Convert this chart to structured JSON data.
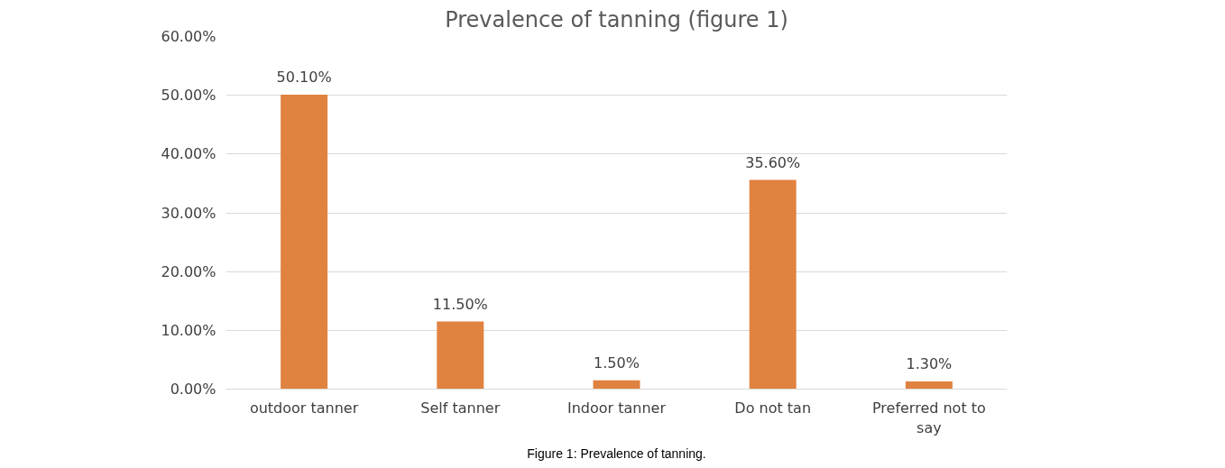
{
  "chart_data": {
    "type": "bar",
    "title": "Prevalence of tanning (figure 1)",
    "categories": [
      "outdoor tanner",
      "Self tanner",
      "Indoor tanner",
      "Do not tan",
      "Preferred not to say"
    ],
    "values": [
      50.1,
      11.5,
      1.5,
      35.6,
      1.3
    ],
    "value_labels": [
      "50.10%",
      "11.50%",
      "1.50%",
      "35.60%",
      "1.30%"
    ],
    "color": "#e08240",
    "ylim": [
      0,
      60
    ],
    "yticks": [
      {
        "value": 0,
        "label": "0.00%"
      },
      {
        "value": 10,
        "label": "10.00%"
      },
      {
        "value": 20,
        "label": "20.00%"
      },
      {
        "value": 30,
        "label": "30.00%"
      },
      {
        "value": 40,
        "label": "40.00%"
      },
      {
        "value": 50,
        "label": "50.00%"
      },
      {
        "value": 60,
        "label": "60.00%"
      }
    ],
    "grid": "y",
    "annotations": [
      "Figure 1: Prevalence of tanning."
    ]
  }
}
